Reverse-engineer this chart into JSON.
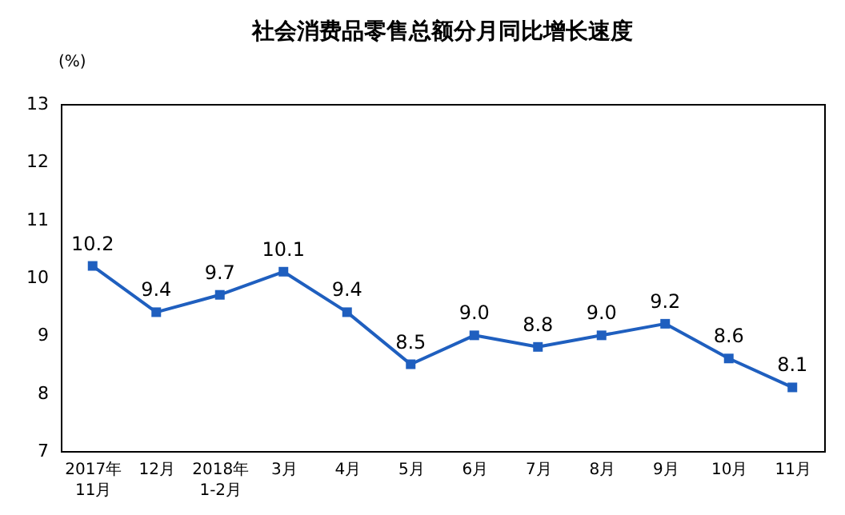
{
  "chart_data": {
    "type": "line",
    "title": "社会消费品零售总额分月同比增长速度",
    "ylabel": "(%)",
    "categories": [
      "2017年\n11月",
      "12月",
      "2018年\n1-2月",
      "3月",
      "4月",
      "5月",
      "6月",
      "7月",
      "8月",
      "9月",
      "10月",
      "11月"
    ],
    "series": [
      {
        "color": "#1f5fbf",
        "values": [
          10.2,
          9.4,
          9.7,
          10.1,
          9.4,
          8.5,
          9.0,
          8.8,
          9.0,
          9.2,
          8.6,
          8.1
        ],
        "value_labels": [
          "10.2",
          "9.4",
          "9.7",
          "10.1",
          "9.4",
          "8.5",
          "9.0",
          "8.8",
          "9.0",
          "9.2",
          "8.6",
          "8.1"
        ]
      }
    ],
    "ylim": [
      7,
      13
    ],
    "yticks": [
      7,
      8,
      9,
      10,
      11,
      12,
      13
    ],
    "grid": false,
    "legend": false,
    "marker": "square",
    "line_style": "solid"
  }
}
